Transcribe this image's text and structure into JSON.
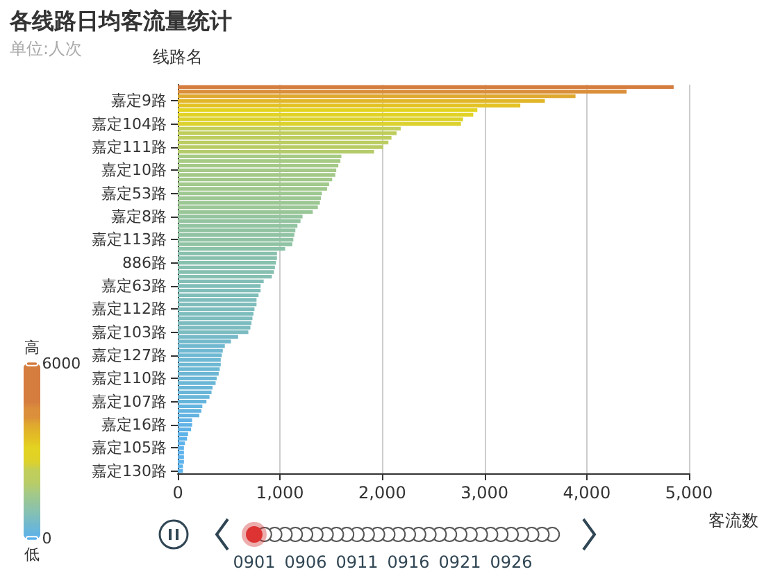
{
  "chart_data": {
    "type": "bar",
    "orientation": "horizontal",
    "title": "各线路日均客流量统计",
    "subtitle": "单位:人次",
    "xlabel": "客流数",
    "ylabel": "线路名",
    "categories": [
      null,
      null,
      null,
      "嘉定9路",
      null,
      null,
      null,
      null,
      "嘉定104路",
      null,
      null,
      null,
      null,
      "嘉定111路",
      null,
      null,
      null,
      null,
      "嘉定10路",
      null,
      null,
      null,
      null,
      "嘉定53路",
      null,
      null,
      null,
      null,
      "嘉定8路",
      null,
      null,
      null,
      null,
      "嘉定113路",
      null,
      null,
      null,
      null,
      "886路",
      null,
      null,
      null,
      null,
      "嘉定63路",
      null,
      null,
      null,
      null,
      "嘉定112路",
      null,
      null,
      null,
      null,
      "嘉定103路",
      null,
      null,
      null,
      null,
      "嘉定127路",
      null,
      null,
      null,
      null,
      "嘉定110路",
      null,
      null,
      null,
      null,
      "嘉定107路",
      null,
      null,
      null,
      null,
      "嘉定16路",
      null,
      null,
      null,
      null,
      "嘉定105路",
      null,
      null,
      null,
      null,
      "嘉定130路"
    ],
    "values": [
      4850,
      4390,
      3890,
      3590,
      3350,
      2930,
      2890,
      2790,
      2770,
      2180,
      2140,
      2090,
      2060,
      2010,
      1920,
      1600,
      1590,
      1570,
      1550,
      1540,
      1510,
      1480,
      1460,
      1410,
      1400,
      1390,
      1370,
      1320,
      1220,
      1200,
      1170,
      1150,
      1140,
      1130,
      1120,
      1050,
      970,
      970,
      960,
      950,
      940,
      920,
      840,
      810,
      810,
      790,
      770,
      770,
      750,
      740,
      730,
      720,
      710,
      690,
      590,
      520,
      460,
      440,
      430,
      420,
      420,
      410,
      400,
      380,
      370,
      340,
      330,
      310,
      280,
      240,
      230,
      210,
      140,
      140,
      130,
      100,
      90,
      70,
      60,
      60,
      60,
      60,
      50,
      50
    ],
    "colors": [
      "#d57c3f",
      "#db8f3a",
      "#dfa82f",
      "#e1b628",
      "#e3c223",
      "#e3d321",
      "#e1d224",
      "#dcd22c",
      "#dcd12d",
      "#c1ce59",
      "#bfcd5c",
      "#bdcd5f",
      "#bbcd62",
      "#b9cc65",
      "#b5cc6c",
      "#a7ca84",
      "#a6ca85",
      "#a5c986",
      "#a4c988",
      "#a4c989",
      "#a2c98b",
      "#a1c98c",
      "#a0c88e",
      "#9ec891",
      "#9dc792",
      "#9cc793",
      "#9cc794",
      "#99c697",
      "#95c59e",
      "#94c49f",
      "#92c4a1",
      "#91c3a2",
      "#90c3a3",
      "#90c3a4",
      "#90c3a4",
      "#8cc2a9",
      "#89c1ae",
      "#89c1ae",
      "#88c1af",
      "#88c0b0",
      "#87c0b0",
      "#86c0b2",
      "#82beb7",
      "#81beb9",
      "#81beb9",
      "#80beba",
      "#7fbdbc",
      "#7fbdbc",
      "#7ebdbd",
      "#7dbdbe",
      "#7dbdbe",
      "#7cbcbf",
      "#7cbcc0",
      "#7bbcc1",
      "#76bac8",
      "#73b9cc",
      "#70b8d0",
      "#6fb8d2",
      "#6fb8d2",
      "#6eb8d3",
      "#6eb8d3",
      "#6eb8d4",
      "#6db7d4",
      "#6cb7d6",
      "#6cb7d6",
      "#6ab6d8",
      "#6ab6d9",
      "#69b6da",
      "#67b5dc",
      "#66b5df",
      "#65b5e0",
      "#64b4e1",
      "#61b3e6",
      "#61b3e6",
      "#60b3e6",
      "#5fb3e8",
      "#5eb2e9",
      "#5db2ea",
      "#5db2eb",
      "#5db2eb",
      "#5db2eb",
      "#5db2eb",
      "#5cb2ec",
      "#5cb2ec"
    ],
    "clim": [
      0,
      6000
    ],
    "cticks": [
      0,
      6000
    ],
    "xlim": [
      0,
      5000
    ],
    "xticks": [
      0,
      {
        "value": 1000,
        "label": "1,000"
      },
      {
        "value": 2000,
        "label": "2,000"
      },
      {
        "value": 3000,
        "label": "3,000"
      },
      {
        "value": 4000,
        "label": "4,000"
      },
      {
        "value": 5000,
        "label": "5,000"
      }
    ],
    "grid": "x",
    "annotations": [
      "高",
      "低",
      "0901",
      "0906",
      "0911",
      "0916",
      "0921",
      "0926"
    ]
  }
}
